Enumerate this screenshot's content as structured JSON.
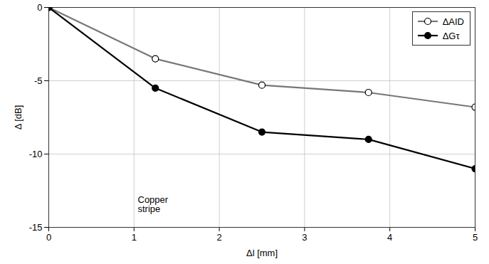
{
  "chart_data": {
    "type": "line",
    "x_label": "Δl [mm]",
    "y_label": "Δ [dB]",
    "x": [
      0,
      1.25,
      2.5,
      3.75,
      5
    ],
    "series": [
      {
        "name": "ΔAID",
        "color": "#777777",
        "marker": "open_circle",
        "line_style": "solid",
        "values": [
          0,
          -3.5,
          -5.3,
          -5.8,
          -6.8
        ]
      },
      {
        "name": "ΔGτ",
        "color": "#000000",
        "marker": "circle",
        "line_style": "solid",
        "values": [
          0,
          -5.5,
          -8.5,
          -9.0,
          -11.0
        ]
      }
    ],
    "xlim": [
      0,
      5
    ],
    "xticks": [
      0,
      1,
      2,
      3,
      4,
      5
    ],
    "ylim": [
      -15,
      0
    ],
    "yticks": [
      -15,
      -10,
      -5,
      0
    ],
    "grid": true,
    "legend": "top-right",
    "annotations": [
      "Copper stripe"
    ]
  }
}
